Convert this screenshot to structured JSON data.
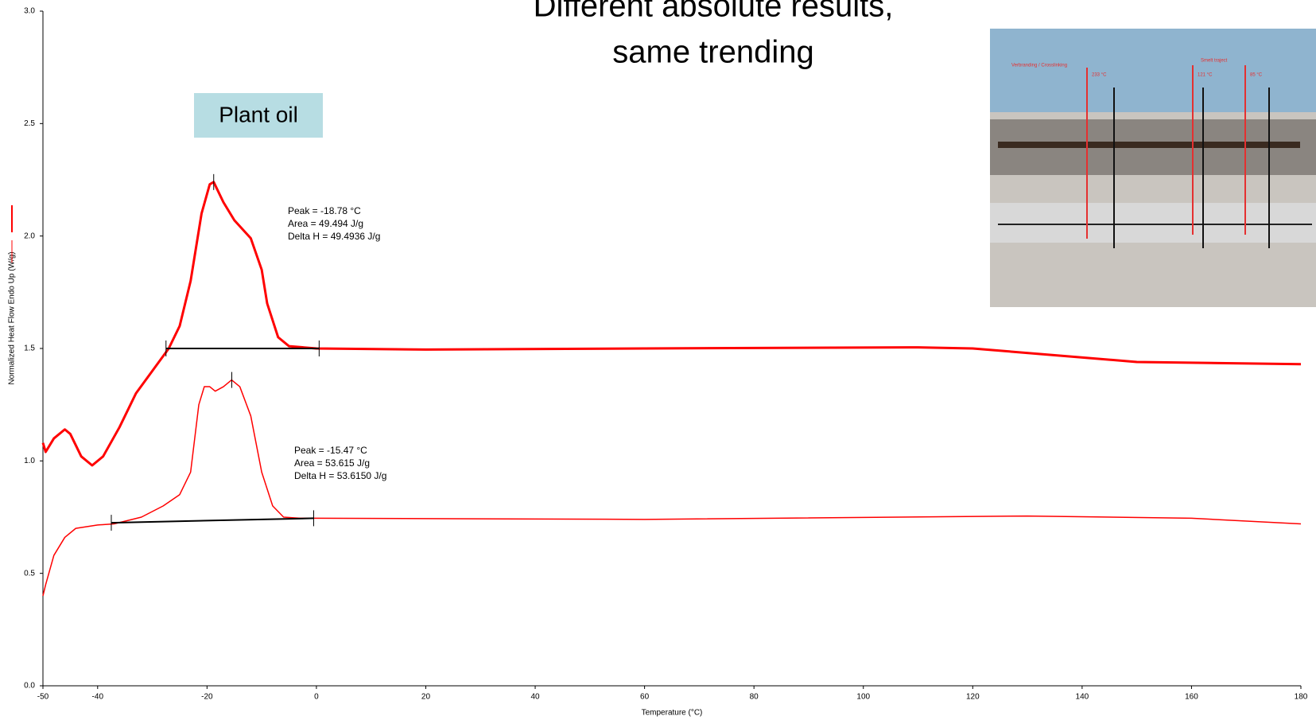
{
  "chart_data": {
    "type": "line",
    "title": [
      "Different absolute results,",
      "same trending"
    ],
    "label_box": "Plant oil",
    "xlabel": "Temperature (°C)",
    "ylabel": "Normalized Heat Flow Endo Up (W/g)",
    "xlim": [
      -50,
      180
    ],
    "ylim": [
      0,
      3
    ],
    "xticks": [
      -50,
      -40,
      -20,
      0,
      20,
      40,
      60,
      80,
      100,
      120,
      140,
      160,
      180
    ],
    "yticks": [
      {
        "value": 0,
        "label": "0.0"
      },
      0.5,
      {
        "value": 1,
        "label": "1.0"
      },
      1.5,
      {
        "value": 2,
        "label": "2.0"
      },
      2.5,
      {
        "value": 3,
        "label": "3.0"
      }
    ],
    "series": [
      {
        "color": "#ff0000",
        "line_width": 3,
        "x": [
          -50,
          -49.5,
          -48,
          -46,
          -45,
          -43,
          -41,
          -39,
          -36,
          -33,
          -30,
          -27,
          -25,
          -23,
          -21,
          -19.5,
          -18.78,
          -17,
          -15,
          -12,
          -10,
          -9,
          -7,
          -5,
          0,
          20,
          60,
          110,
          120,
          135,
          150,
          165,
          180
        ],
        "values": [
          1.08,
          1.04,
          1.1,
          1.14,
          1.12,
          1.02,
          0.98,
          1.02,
          1.15,
          1.3,
          1.4,
          1.5,
          1.6,
          1.8,
          2.1,
          2.23,
          2.24,
          2.15,
          2.07,
          1.99,
          1.85,
          1.7,
          1.55,
          1.51,
          1.5,
          1.495,
          1.5,
          1.505,
          1.5,
          1.47,
          1.44,
          1.435,
          1.43
        ]
      },
      {
        "color": "#ff0000",
        "line_width": 1.5,
        "x": [
          -50,
          -49.5,
          -48,
          -46,
          -44,
          -40,
          -37,
          -32,
          -28,
          -25,
          -23,
          -21.5,
          -20.5,
          -19.5,
          -18.5,
          -17,
          -15.5,
          -14,
          -12,
          -10,
          -8,
          -6,
          -3,
          0,
          60,
          130,
          160,
          180
        ],
        "values": [
          0.4,
          0.45,
          0.58,
          0.66,
          0.7,
          0.715,
          0.72,
          0.75,
          0.8,
          0.85,
          0.95,
          1.25,
          1.33,
          1.33,
          1.31,
          1.33,
          1.36,
          1.33,
          1.2,
          0.95,
          0.8,
          0.75,
          0.745,
          0.745,
          0.74,
          0.755,
          0.745,
          0.72
        ]
      }
    ],
    "baselines": [
      {
        "x": [
          -27.5,
          0.5
        ],
        "values": [
          1.5,
          1.5
        ]
      },
      {
        "x": [
          -37.5,
          -0.5
        ],
        "values": [
          0.725,
          0.745
        ]
      }
    ],
    "peak_markers": {
      "x": [
        -18.78,
        -15.47
      ],
      "values": [
        2.24,
        1.36
      ]
    },
    "annotations": [
      [
        "Peak = -18.78 °C",
        "Area = 49.494 J/g",
        "Delta H = 49.4936 J/g"
      ],
      [
        "Peak = -15.47 °C",
        "Area = 53.615 J/g",
        "Delta H = 53.6150 J/g"
      ]
    ],
    "photo_labels": [
      "Verbranding / Crosslinking",
      "233 °C",
      "Smelt traject",
      "121 °C",
      "85 °C"
    ]
  }
}
